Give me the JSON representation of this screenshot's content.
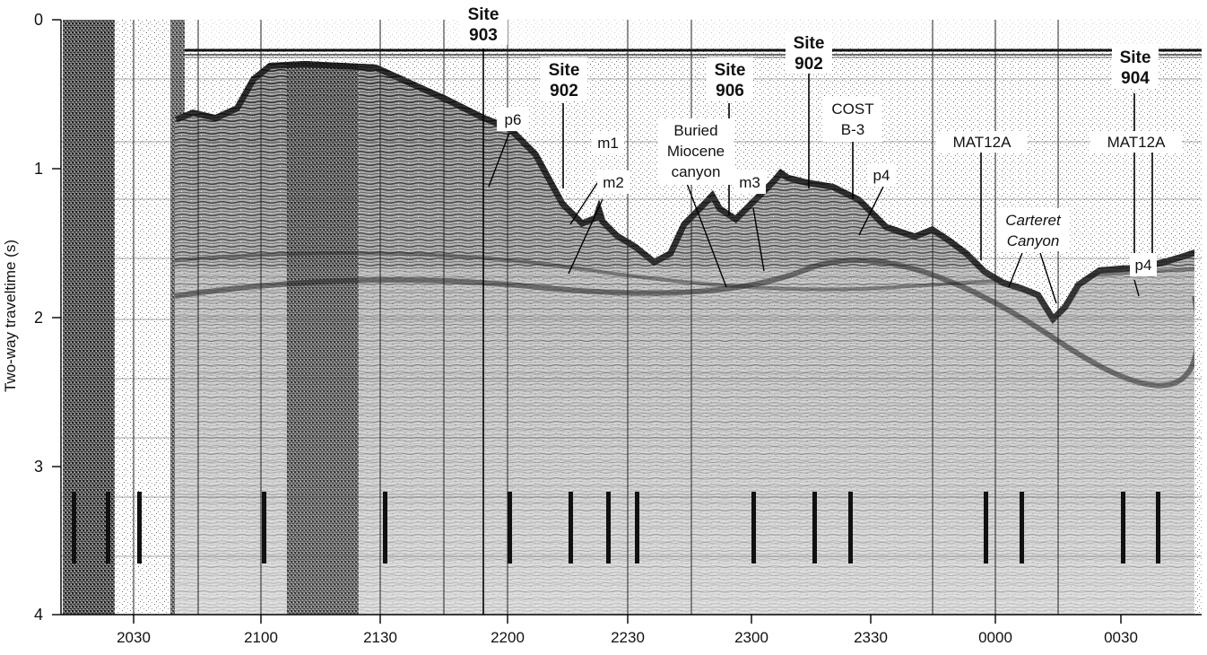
{
  "figure": {
    "ylabel": "Two-way traveltime (s)",
    "y_ticks": [
      "0",
      "1",
      "2",
      "3",
      "4"
    ],
    "x_ticks": [
      "2030",
      "2100",
      "2130",
      "2200",
      "2230",
      "2300",
      "2330",
      "0000",
      "0030"
    ],
    "labels": {
      "site903": [
        "Site",
        "903"
      ],
      "site902a": [
        "Site",
        "902"
      ],
      "site906": [
        "Site",
        "906"
      ],
      "site902b": [
        "Site",
        "902"
      ],
      "site904": [
        "Site",
        "904"
      ],
      "p6": "p6",
      "m1": "m1",
      "m2": "m2",
      "buried": [
        "Buried",
        "Miocene",
        "canyon"
      ],
      "m3": "m3",
      "cost": [
        "COST",
        "B-3"
      ],
      "p4a": "p4",
      "mat1": "MAT12A",
      "mat2": "MAT12A",
      "carteret": [
        "Carteret",
        "Canyon"
      ],
      "p4b": "p4"
    }
  }
}
